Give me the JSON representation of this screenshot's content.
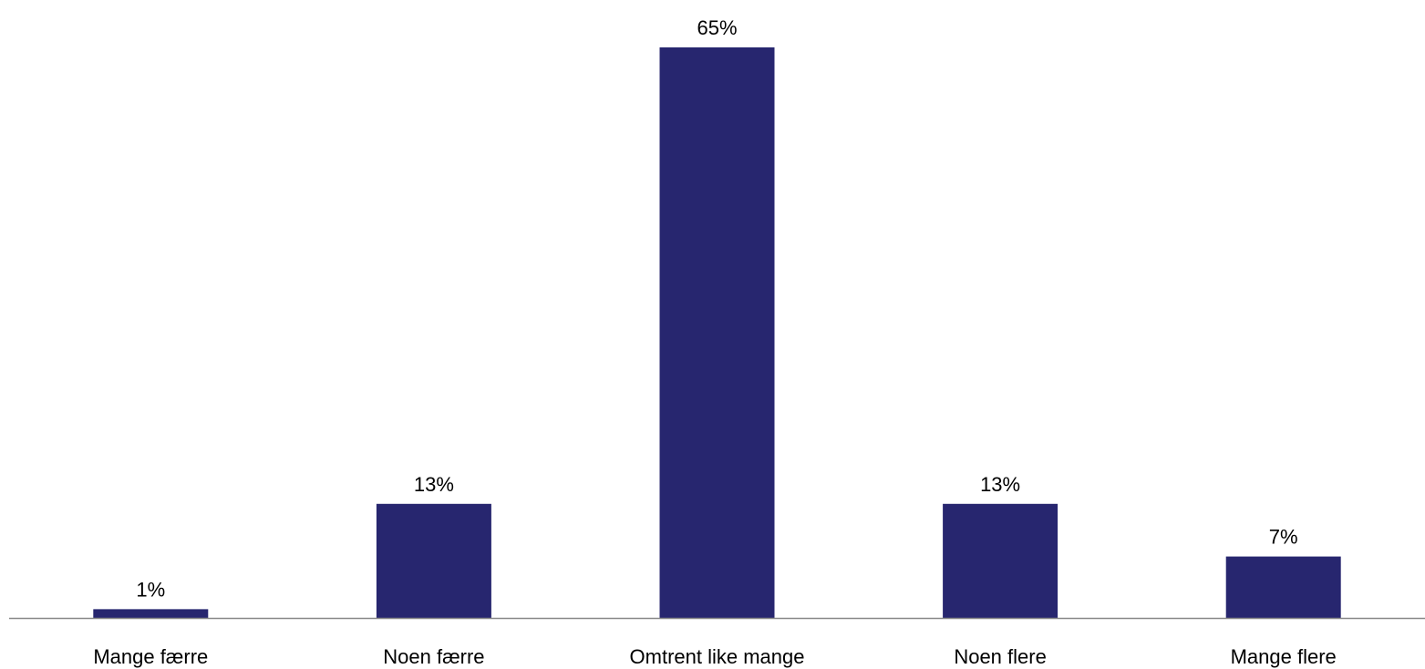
{
  "chart_data": {
    "type": "bar",
    "categories": [
      "Mange færre",
      "Noen færre",
      "Omtrent like mange",
      "Noen flere",
      "Mange flere"
    ],
    "values": [
      1,
      13,
      65,
      13,
      7
    ],
    "value_labels": [
      "1%",
      "13%",
      "65%",
      "13%",
      "7%"
    ],
    "unit": "%",
    "ylim": [
      0,
      65
    ],
    "grid": false,
    "legend": "none",
    "bar_color": "#27266f",
    "axis_color": "#888888"
  }
}
